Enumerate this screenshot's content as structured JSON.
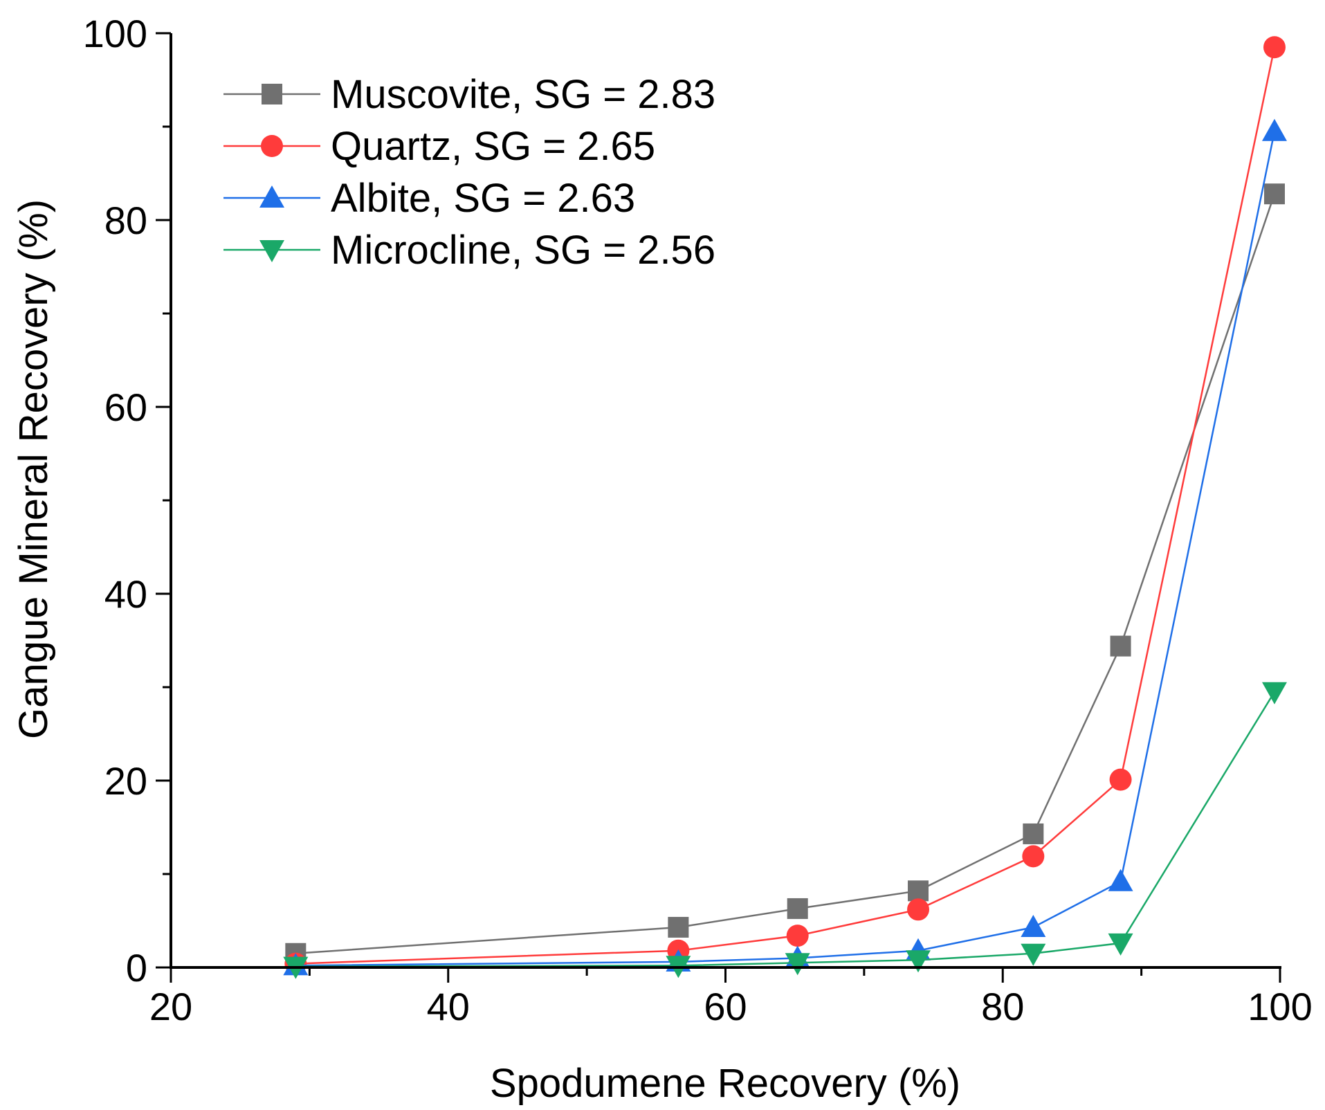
{
  "chart_data": {
    "type": "line",
    "title": "",
    "xlabel": "Spodumene Recovery (%)",
    "ylabel": "Gangue Mineral Recovery (%)",
    "xlim": [
      20,
      100
    ],
    "ylim": [
      0,
      100
    ],
    "xticks": [
      20,
      40,
      60,
      80,
      100
    ],
    "yticks": [
      0,
      20,
      40,
      60,
      80,
      100
    ],
    "grid": false,
    "legend_position": "top-left",
    "series": [
      {
        "name": "Muscovite, SG = 2.83",
        "color": "#707070",
        "marker": "square",
        "x": [
          29,
          56.6,
          65.2,
          73.9,
          82.2,
          88.5,
          99.6
        ],
        "y": [
          1.5,
          4.3,
          6.3,
          8.2,
          14.3,
          34.4,
          82.8
        ]
      },
      {
        "name": "Quartz, SG = 2.65",
        "color": "#ff3b3b",
        "marker": "circle",
        "x": [
          29,
          56.6,
          65.2,
          73.9,
          82.2,
          88.5,
          99.6
        ],
        "y": [
          0.4,
          1.8,
          3.4,
          6.2,
          11.9,
          20.1,
          98.5
        ]
      },
      {
        "name": "Albite, SG = 2.63",
        "color": "#1f6fe8",
        "marker": "triangle-up",
        "x": [
          29,
          56.6,
          65.2,
          73.9,
          82.2,
          88.5,
          99.6
        ],
        "y": [
          0.2,
          0.6,
          1.0,
          1.8,
          4.3,
          9.2,
          89.5
        ]
      },
      {
        "name": "Microcline, SG = 2.56",
        "color": "#1aa868",
        "marker": "triangle-down",
        "x": [
          29,
          56.6,
          65.2,
          73.9,
          82.2,
          88.5,
          99.6
        ],
        "y": [
          0.1,
          0.2,
          0.5,
          0.8,
          1.5,
          2.6,
          29.5
        ]
      }
    ]
  }
}
